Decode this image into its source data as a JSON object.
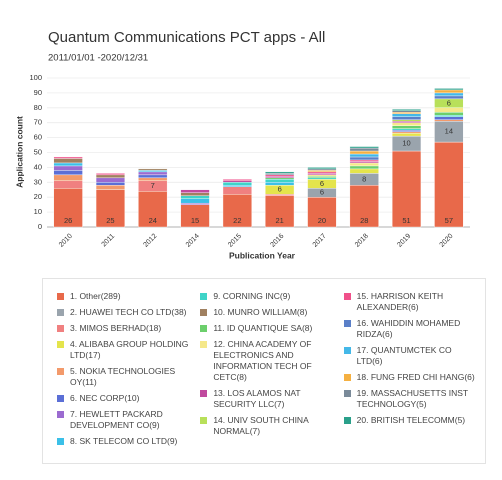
{
  "chart_data": {
    "type": "stacked_bar",
    "title": "Quantum Communications PCT apps - All",
    "subtitle": "2011/01/01 -2020/12/31",
    "y_label": "Application count",
    "x_label": "Publication Year",
    "categories": [
      "2010",
      "2011",
      "2012",
      "2014",
      "2015",
      "2016",
      "2017",
      "2018",
      "2019",
      "2020"
    ],
    "ylim": [
      0,
      100
    ],
    "yticks": [
      0,
      10,
      20,
      30,
      40,
      50,
      60,
      70,
      80,
      90,
      100
    ],
    "grid": true,
    "series": [
      {
        "name": "1. Other(289)",
        "color": "#e8694a",
        "values": [
          26,
          25,
          24,
          15,
          22,
          21,
          20,
          28,
          51,
          57
        ]
      },
      {
        "name": "2. HUAWEI TECH CO LTD(38)",
        "color": "#9aa4ad",
        "values": [
          0,
          0,
          0,
          0,
          0,
          0,
          6,
          8,
          10,
          14
        ]
      },
      {
        "name": "3. MIMOS BERHAD(18)",
        "color": "#f08080",
        "values": [
          5,
          0,
          7,
          0,
          5,
          1,
          0,
          0,
          0,
          0
        ]
      },
      {
        "name": "4. ALIBABA GROUP HOLDING LTD(17)",
        "color": "#e4e44c",
        "values": [
          0,
          0,
          0,
          0,
          0,
          6,
          6,
          3,
          2,
          0
        ]
      },
      {
        "name": "5. NOKIA TECHNOLOGIES OY(11)",
        "color": "#f39a6b",
        "values": [
          4,
          3,
          2,
          0,
          0,
          0,
          0,
          0,
          1,
          1
        ]
      },
      {
        "name": "6. NEC CORP(10)",
        "color": "#5b6fd6",
        "values": [
          3,
          2,
          2,
          0,
          0,
          0,
          0,
          0,
          1,
          2
        ]
      },
      {
        "name": "7. HEWLETT PACKARD DEVELOPMENT CO(9)",
        "color": "#9b6bd0",
        "values": [
          3,
          3,
          2,
          1,
          0,
          0,
          0,
          0,
          0,
          0
        ]
      },
      {
        "name": "8. SK TELECOM CO LTD(9)",
        "color": "#3bc0e8",
        "values": [
          2,
          0,
          1,
          3,
          1,
          2,
          0,
          0,
          0,
          0
        ]
      },
      {
        "name": "9. CORNING INC(9)",
        "color": "#3fd4c8",
        "values": [
          0,
          0,
          0,
          2,
          2,
          2,
          1,
          0,
          1,
          1
        ]
      },
      {
        "name": "10. MUNRO WILLIAM(8)",
        "color": "#a08060",
        "values": [
          3,
          2,
          1,
          2,
          0,
          0,
          0,
          0,
          0,
          0
        ]
      },
      {
        "name": "11. ID QUANTIQUE SA(8)",
        "color": "#6ccf6c",
        "values": [
          0,
          0,
          0,
          0,
          0,
          1,
          1,
          2,
          2,
          2
        ]
      },
      {
        "name": "12. CHINA ACADEMY OF ELECTRONICS AND INFORMATION TECH OF CETC(8)",
        "color": "#f5e88a",
        "values": [
          0,
          0,
          0,
          0,
          0,
          0,
          1,
          2,
          2,
          3
        ]
      },
      {
        "name": "13. LOS ALAMOS NAT SECURITY LLC(7)",
        "color": "#c04a9e",
        "values": [
          0,
          0,
          0,
          2,
          1,
          1,
          1,
          1,
          1,
          0
        ]
      },
      {
        "name": "14. UNIV SOUTH CHINA NORMAL(7)",
        "color": "#b8e05a",
        "values": [
          0,
          0,
          0,
          0,
          0,
          0,
          0,
          0,
          1,
          6
        ]
      },
      {
        "name": "15. HARRISON KEITH ALEXANDER(6)",
        "color": "#f0508a",
        "values": [
          1,
          1,
          0,
          0,
          1,
          1,
          1,
          1,
          0,
          0
        ]
      },
      {
        "name": "16. WAHIDDIN MOHAMED RIDZA(6)",
        "color": "#5a7fc8",
        "values": [
          0,
          0,
          0,
          0,
          0,
          0,
          0,
          2,
          2,
          2
        ]
      },
      {
        "name": "17. QUANTUMCTEK CO LTD(6)",
        "color": "#44b8e8",
        "values": [
          0,
          0,
          0,
          0,
          0,
          0,
          0,
          2,
          2,
          2
        ]
      },
      {
        "name": "18. FUNG FRED CHI HANG(6)",
        "color": "#f5b041",
        "values": [
          0,
          0,
          0,
          0,
          0,
          0,
          1,
          2,
          1,
          2
        ]
      },
      {
        "name": "19. MASSACHUSETTS INST TECHNOLOGY(5)",
        "color": "#7a8a99",
        "values": [
          0,
          0,
          0,
          0,
          0,
          1,
          1,
          2,
          1,
          0
        ]
      },
      {
        "name": "20. BRITISH TELECOMM(5)",
        "color": "#2aa08a",
        "values": [
          0,
          0,
          0,
          0,
          0,
          1,
          1,
          1,
          1,
          1
        ]
      }
    ]
  }
}
